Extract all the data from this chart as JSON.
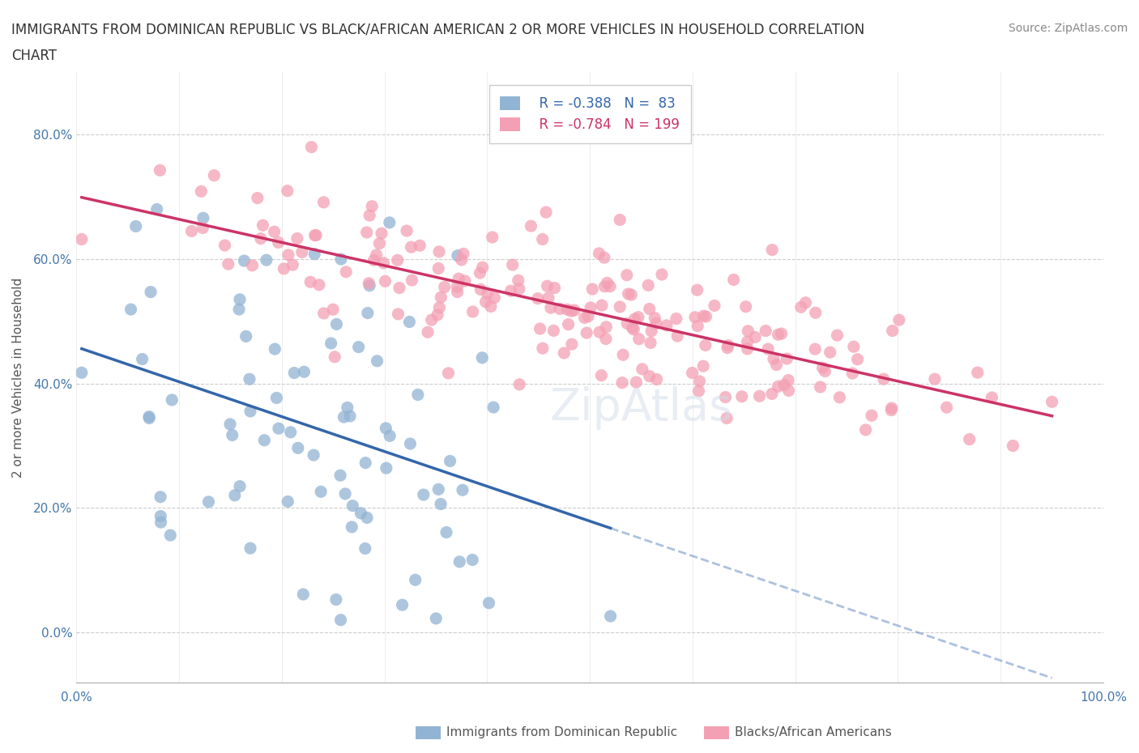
{
  "title_line1": "IMMIGRANTS FROM DOMINICAN REPUBLIC VS BLACK/AFRICAN AMERICAN 2 OR MORE VEHICLES IN HOUSEHOLD CORRELATION",
  "title_line2": "CHART",
  "source_text": "Source: ZipAtlas.com",
  "ylabel": "2 or more Vehicles in Household",
  "ytick_labels": [
    "0.0%",
    "20.0%",
    "40.0%",
    "60.0%",
    "80.0%"
  ],
  "ytick_values": [
    0,
    20,
    40,
    60,
    80
  ],
  "xlim": [
    0,
    100
  ],
  "ylim": [
    -8,
    90
  ],
  "blue_R": -0.388,
  "blue_N": 83,
  "pink_R": -0.784,
  "pink_N": 199,
  "blue_label": "Immigrants from Dominican Republic",
  "pink_label": "Blacks/African Americans",
  "watermark": "ZipAtlas",
  "blue_color": "#92b4d4",
  "pink_color": "#f4a0b4",
  "blue_line_color": "#3366aa",
  "pink_line_color": "#cc3366",
  "title_color": "#333333",
  "axis_label_color": "#4477aa",
  "grid_color": "#cccccc",
  "background_color": "#ffffff"
}
